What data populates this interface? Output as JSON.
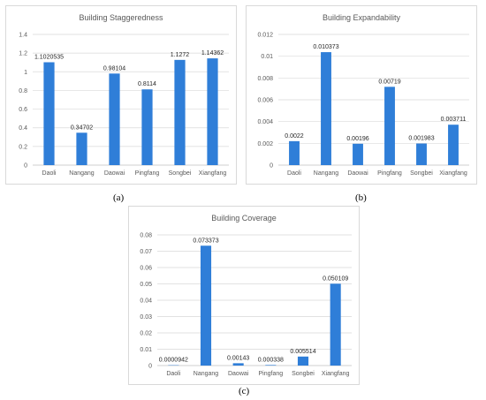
{
  "captions": [
    "(a)",
    "(b)",
    "(c)"
  ],
  "chart_data": [
    {
      "type": "bar",
      "title": "Building Staggeredness",
      "categories": [
        "Daoli",
        "Nangang",
        "Daowai",
        "Pingfang",
        "Songbei",
        "Xiangfang"
      ],
      "values": [
        1.1020535,
        0.34702,
        0.98104,
        0.8114,
        1.1272,
        1.14362
      ],
      "data_labels": [
        "1.1020535",
        "0.34702",
        "0.98104",
        "0.8114",
        "1.1272",
        "1.14362"
      ],
      "yticks": [
        "0",
        "0.2",
        "0.4",
        "0.6",
        "0.8",
        "1",
        "1.2",
        "1.4"
      ],
      "ylim": [
        0,
        1.4
      ],
      "grid": true
    },
    {
      "type": "bar",
      "title": "Building Expandability",
      "categories": [
        "Daoli",
        "Nangang",
        "Daowai",
        "Pingfang",
        "Songbei",
        "Xiangfang"
      ],
      "values": [
        0.0022,
        0.010373,
        0.00196,
        0.00719,
        0.001983,
        0.003711
      ],
      "data_labels": [
        "0.0022",
        "0.010373",
        "0.00196",
        "0.00719",
        "0.001983",
        "0.003711"
      ],
      "yticks": [
        "0",
        "0.002",
        "0.004",
        "0.006",
        "0.008",
        "0.01",
        "0.012"
      ],
      "ylim": [
        0,
        0.012
      ],
      "grid": true
    },
    {
      "type": "bar",
      "title": "Building Coverage",
      "categories": [
        "Daoli",
        "Nangang",
        "Daowai",
        "Pingfang",
        "Songbei",
        "Xiangfang"
      ],
      "values": [
        9.42e-05,
        0.073373,
        0.00143,
        0.000338,
        0.005514,
        0.050109
      ],
      "data_labels": [
        "0.0000942",
        "0.073373",
        "0.00143",
        "0.000338",
        "0.005514",
        "0.050109"
      ],
      "yticks": [
        "0",
        "0.01",
        "0.02",
        "0.03",
        "0.04",
        "0.05",
        "0.06",
        "0.07",
        "0.08"
      ],
      "ylim": [
        0,
        0.08
      ],
      "grid": true
    }
  ]
}
